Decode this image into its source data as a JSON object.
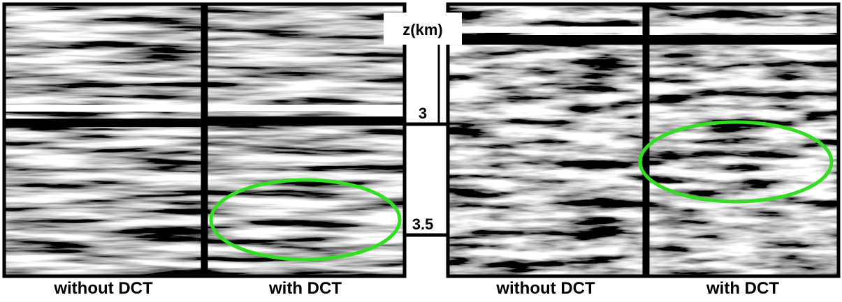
{
  "panels": [
    {
      "label": "without DCT"
    },
    {
      "label": "with DCT"
    },
    {
      "label": "without DCT"
    },
    {
      "label": "with DCT"
    }
  ],
  "depth_axis": {
    "label": "z(km)",
    "ticks": [
      "3",
      "3.5"
    ]
  }
}
